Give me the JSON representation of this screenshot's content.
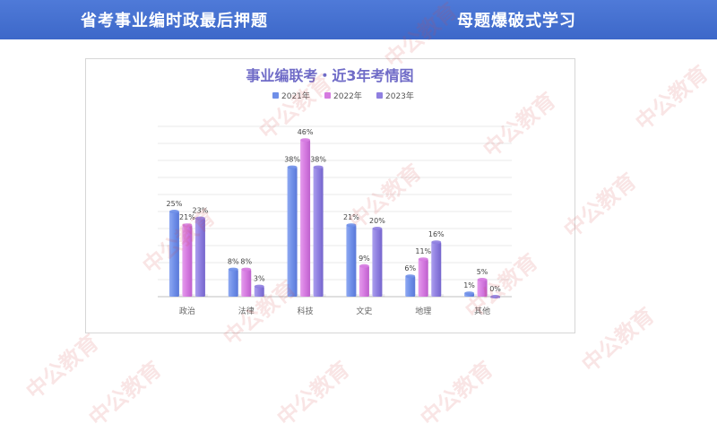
{
  "banner": {
    "left_title": "省考事业编时政最后押题",
    "right_title": "母题爆破式学习"
  },
  "watermark": {
    "text": "中公教育"
  },
  "colors": {
    "banner": "#3d68c9",
    "title": "#6f6bc7",
    "series": [
      "#6f8fe8",
      "#d57ae0",
      "#8f7fe0"
    ]
  },
  "chart_data": {
    "type": "bar",
    "title": "事业编联考・近3年考情图",
    "legend_position": "top",
    "grid": true,
    "ylim": [
      0,
      50
    ],
    "value_suffix": "%",
    "categories": [
      "政治",
      "法律",
      "科技",
      "文史",
      "地理",
      "其他"
    ],
    "series": [
      {
        "name": "2021年",
        "values": [
          25,
          8,
          38,
          21,
          6,
          1
        ]
      },
      {
        "name": "2022年",
        "values": [
          21,
          8,
          46,
          9,
          11,
          5
        ]
      },
      {
        "name": "2023年",
        "values": [
          23,
          3,
          38,
          20,
          16,
          0
        ]
      }
    ]
  }
}
